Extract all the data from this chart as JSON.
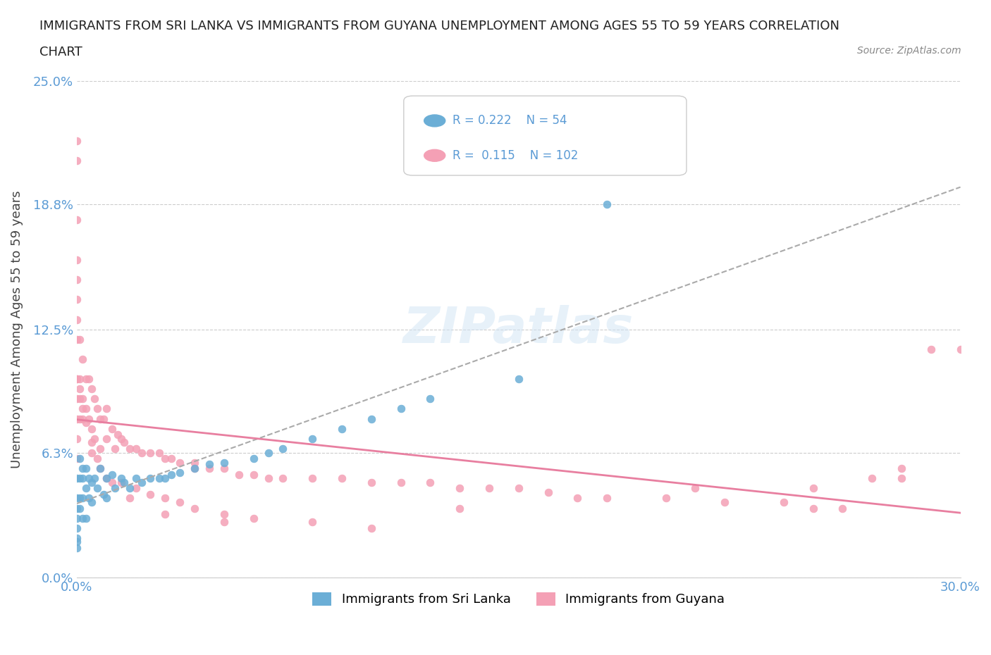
{
  "title_line1": "IMMIGRANTS FROM SRI LANKA VS IMMIGRANTS FROM GUYANA UNEMPLOYMENT AMONG AGES 55 TO 59 YEARS CORRELATION",
  "title_line2": "CHART",
  "source": "Source: ZipAtlas.com",
  "xlabel": "",
  "ylabel": "Unemployment Among Ages 55 to 59 years",
  "xmin": 0.0,
  "xmax": 0.3,
  "ymin": 0.0,
  "ymax": 0.25,
  "yticks": [
    0.0,
    0.063,
    0.125,
    0.188,
    0.25
  ],
  "ytick_labels": [
    "0.0%",
    "6.3%",
    "12.5%",
    "18.8%",
    "25.0%"
  ],
  "xticks": [
    0.0,
    0.3
  ],
  "xtick_labels": [
    "0.0%",
    "30.0%"
  ],
  "sri_lanka_color": "#6baed6",
  "guyana_color": "#f4a0b5",
  "sri_lanka_trend_color": "#8ab4d4",
  "guyana_trend_color": "#e87fa0",
  "R_sri_lanka": 0.222,
  "N_sri_lanka": 54,
  "R_guyana": 0.115,
  "N_guyana": 102,
  "legend_label_1": "Immigrants from Sri Lanka",
  "legend_label_2": "Immigrants from Guyana",
  "watermark": "ZIPatlas",
  "sri_lanka_x": [
    0.0,
    0.0,
    0.0,
    0.0,
    0.0,
    0.0,
    0.0,
    0.0,
    0.001,
    0.001,
    0.001,
    0.001,
    0.002,
    0.002,
    0.002,
    0.002,
    0.003,
    0.003,
    0.003,
    0.004,
    0.004,
    0.005,
    0.005,
    0.006,
    0.007,
    0.008,
    0.009,
    0.01,
    0.01,
    0.012,
    0.013,
    0.015,
    0.016,
    0.018,
    0.02,
    0.022,
    0.025,
    0.028,
    0.03,
    0.032,
    0.035,
    0.04,
    0.045,
    0.05,
    0.06,
    0.065,
    0.07,
    0.08,
    0.09,
    0.1,
    0.11,
    0.12,
    0.15,
    0.18
  ],
  "sri_lanka_y": [
    0.05,
    0.04,
    0.035,
    0.03,
    0.025,
    0.02,
    0.018,
    0.015,
    0.06,
    0.05,
    0.04,
    0.035,
    0.055,
    0.05,
    0.04,
    0.03,
    0.055,
    0.045,
    0.03,
    0.05,
    0.04,
    0.048,
    0.038,
    0.05,
    0.045,
    0.055,
    0.042,
    0.05,
    0.04,
    0.052,
    0.045,
    0.05,
    0.048,
    0.045,
    0.05,
    0.048,
    0.05,
    0.05,
    0.05,
    0.052,
    0.053,
    0.055,
    0.057,
    0.058,
    0.06,
    0.063,
    0.065,
    0.07,
    0.075,
    0.08,
    0.085,
    0.09,
    0.1,
    0.188
  ],
  "guyana_x": [
    0.0,
    0.0,
    0.0,
    0.0,
    0.0,
    0.0,
    0.0,
    0.0,
    0.0,
    0.0,
    0.001,
    0.001,
    0.001,
    0.001,
    0.002,
    0.002,
    0.002,
    0.003,
    0.003,
    0.004,
    0.004,
    0.005,
    0.005,
    0.006,
    0.006,
    0.007,
    0.008,
    0.008,
    0.009,
    0.01,
    0.01,
    0.012,
    0.013,
    0.014,
    0.015,
    0.016,
    0.018,
    0.02,
    0.022,
    0.025,
    0.028,
    0.03,
    0.032,
    0.035,
    0.04,
    0.04,
    0.045,
    0.05,
    0.055,
    0.06,
    0.065,
    0.07,
    0.08,
    0.09,
    0.1,
    0.11,
    0.12,
    0.13,
    0.14,
    0.15,
    0.16,
    0.18,
    0.2,
    0.22,
    0.24,
    0.25,
    0.26,
    0.27,
    0.28,
    0.29,
    0.0,
    0.0,
    0.0,
    0.0,
    0.001,
    0.002,
    0.003,
    0.005,
    0.007,
    0.01,
    0.015,
    0.02,
    0.025,
    0.03,
    0.035,
    0.04,
    0.05,
    0.06,
    0.08,
    0.1,
    0.13,
    0.17,
    0.21,
    0.25,
    0.28,
    0.3,
    0.005,
    0.008,
    0.012,
    0.018,
    0.03,
    0.05
  ],
  "guyana_y": [
    0.22,
    0.21,
    0.18,
    0.16,
    0.14,
    0.12,
    0.1,
    0.09,
    0.08,
    0.07,
    0.12,
    0.1,
    0.09,
    0.08,
    0.11,
    0.09,
    0.08,
    0.1,
    0.085,
    0.1,
    0.08,
    0.095,
    0.075,
    0.09,
    0.07,
    0.085,
    0.08,
    0.065,
    0.08,
    0.085,
    0.07,
    0.075,
    0.065,
    0.072,
    0.07,
    0.068,
    0.065,
    0.065,
    0.063,
    0.063,
    0.063,
    0.06,
    0.06,
    0.058,
    0.058,
    0.055,
    0.055,
    0.055,
    0.052,
    0.052,
    0.05,
    0.05,
    0.05,
    0.05,
    0.048,
    0.048,
    0.048,
    0.045,
    0.045,
    0.045,
    0.043,
    0.04,
    0.04,
    0.038,
    0.038,
    0.035,
    0.035,
    0.05,
    0.055,
    0.115,
    0.15,
    0.13,
    0.1,
    0.06,
    0.095,
    0.085,
    0.078,
    0.068,
    0.06,
    0.05,
    0.048,
    0.045,
    0.042,
    0.04,
    0.038,
    0.035,
    0.032,
    0.03,
    0.028,
    0.025,
    0.035,
    0.04,
    0.045,
    0.045,
    0.05,
    0.115,
    0.063,
    0.055,
    0.048,
    0.04,
    0.032,
    0.028
  ]
}
